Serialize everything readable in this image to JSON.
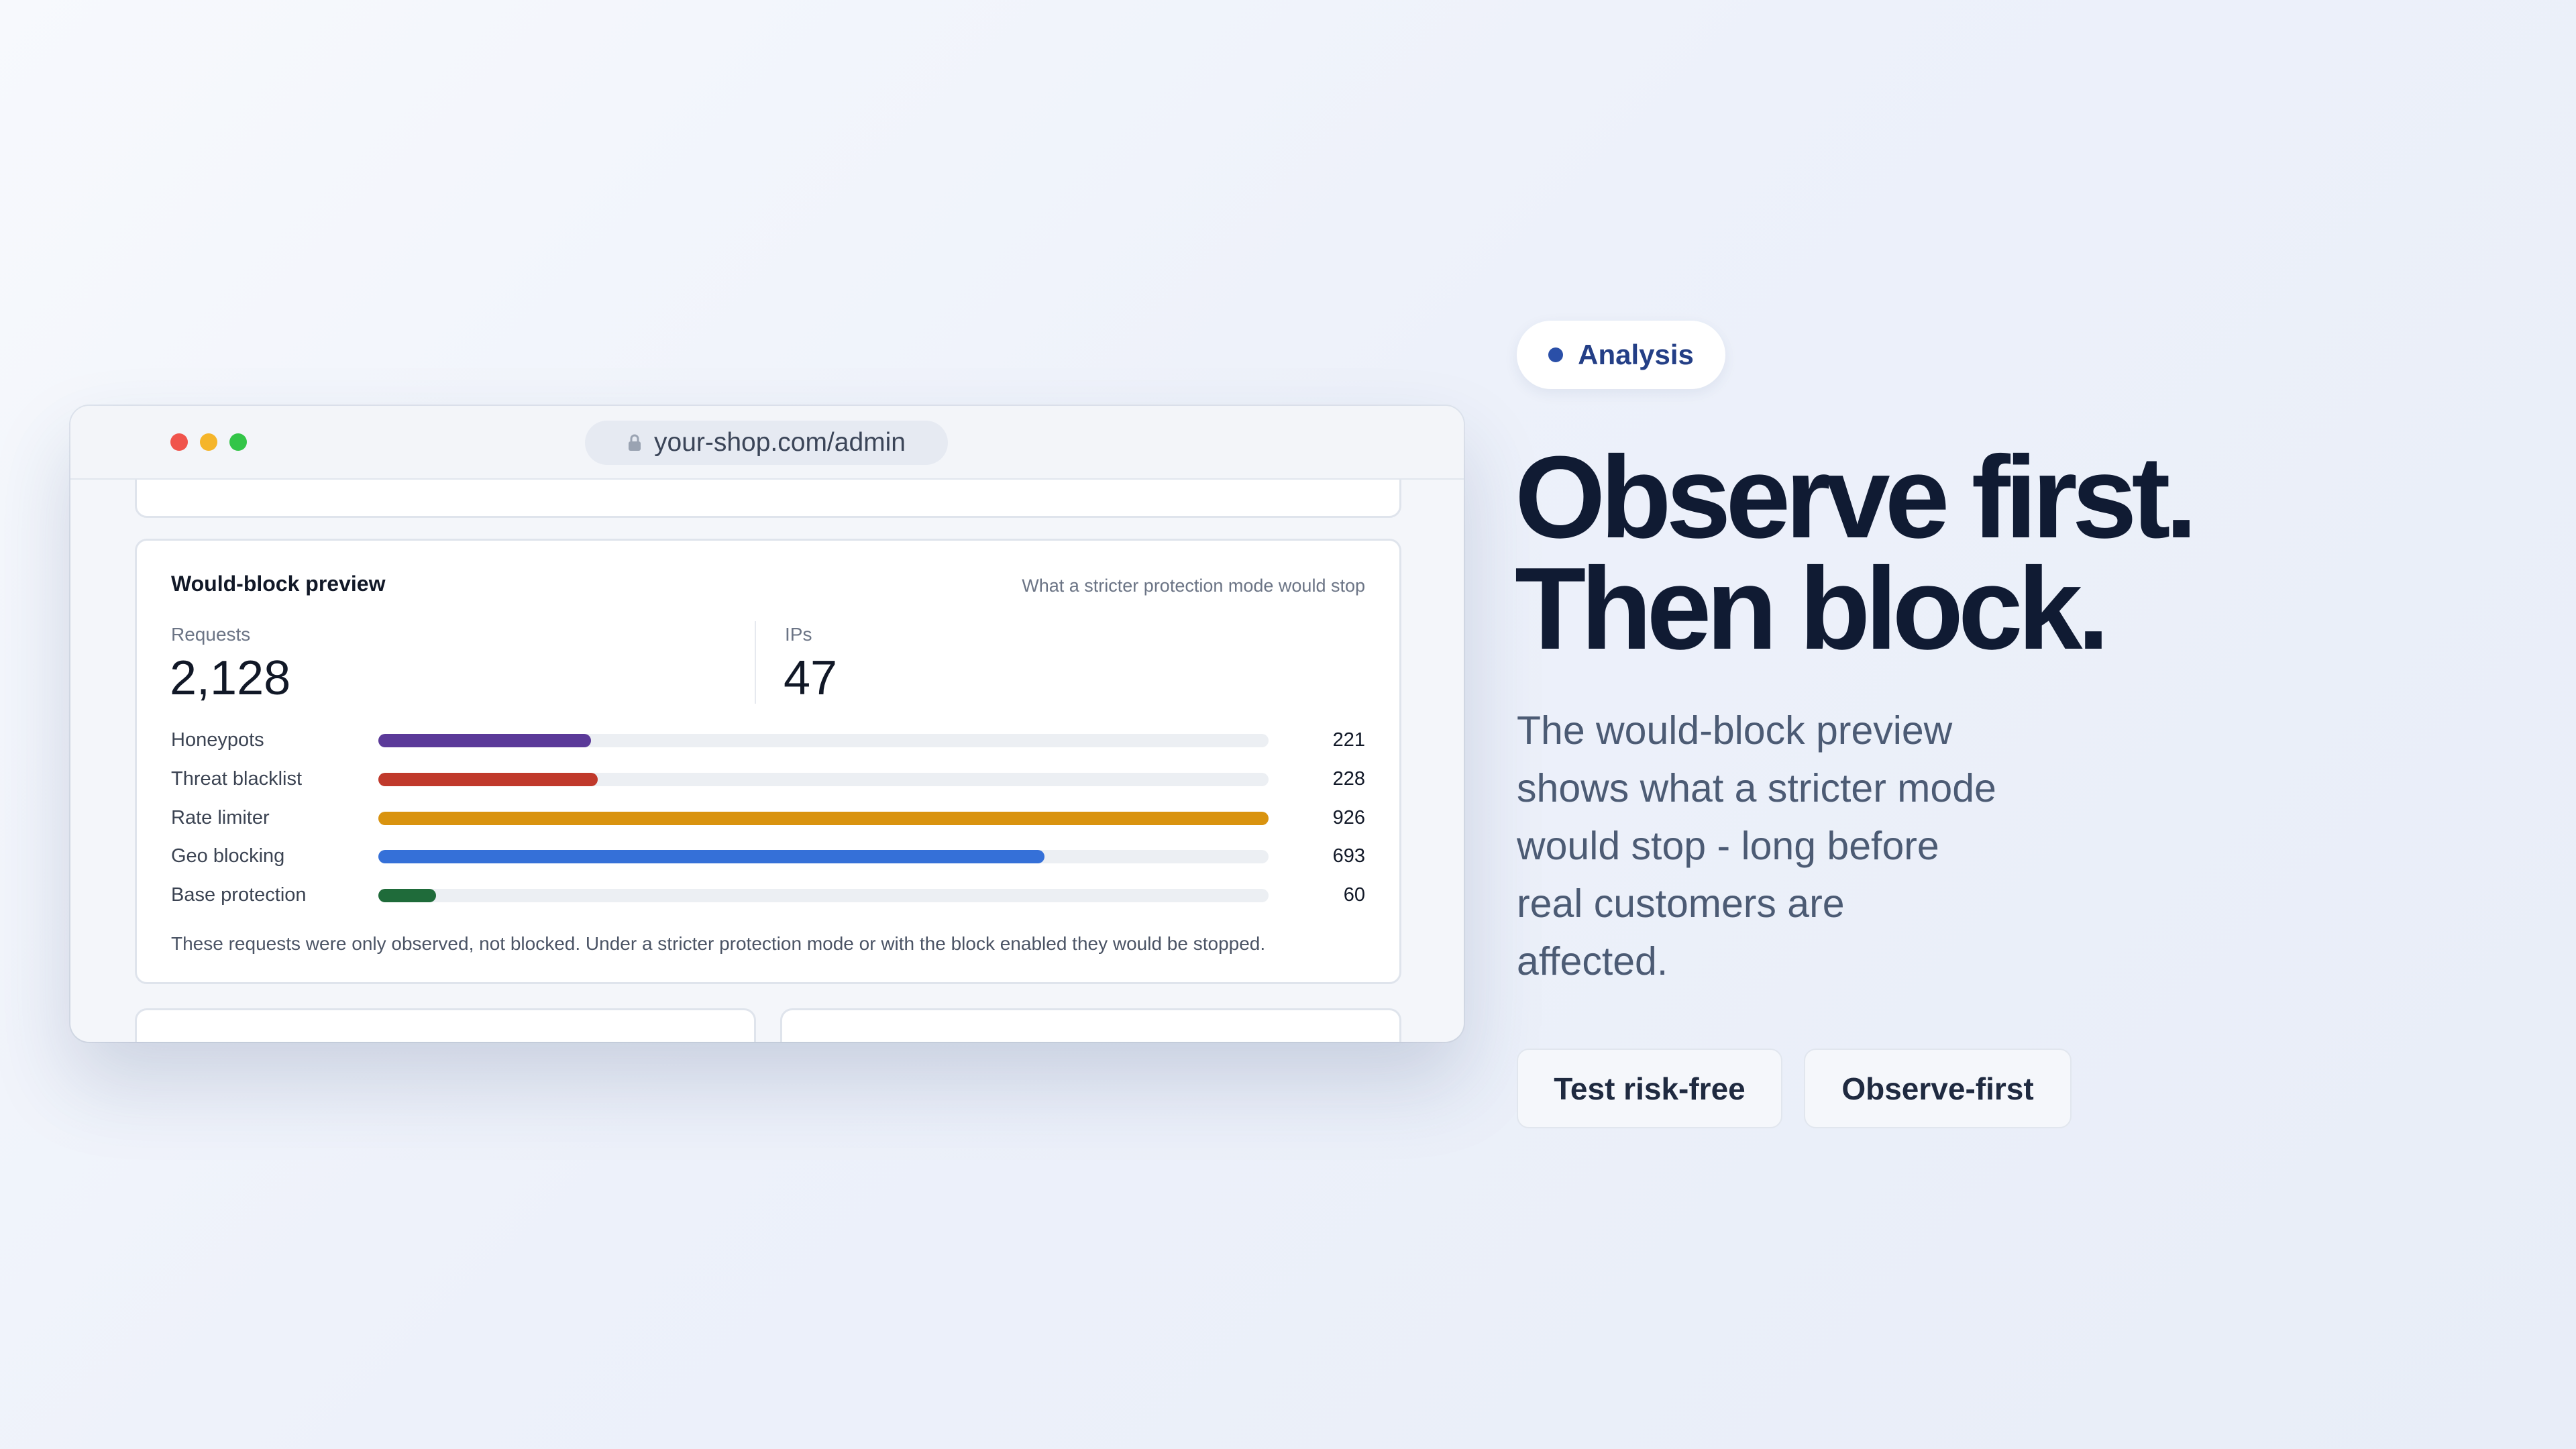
{
  "window": {
    "url": "your-shop.com/admin"
  },
  "preview": {
    "title": "Would-block preview",
    "subtitle": "What a stricter protection mode would stop",
    "stats": [
      {
        "label": "Requests",
        "value": "2,128"
      },
      {
        "label": "IPs",
        "value": "47"
      }
    ],
    "note": "These requests were only observed, not blocked. Under a stricter protection mode or with the block enabled they would be stopped."
  },
  "chart_data": {
    "type": "bar",
    "orientation": "horizontal",
    "categories": [
      "Honeypots",
      "Threat blacklist",
      "Rate limiter",
      "Geo blocking",
      "Base protection"
    ],
    "values": [
      221,
      228,
      926,
      693,
      60
    ],
    "colors": [
      "#5b3a99",
      "#c0392b",
      "#d9930f",
      "#3570d8",
      "#1f6b3a"
    ],
    "xlim": [
      0,
      926
    ]
  },
  "hero": {
    "badge": "Analysis",
    "headline": [
      "Observe first.",
      "Then block."
    ],
    "body": "The would-block preview shows what a stricter mode would stop - long before real customers are affected.",
    "buttons": [
      "Test risk-free",
      "Observe-first"
    ]
  }
}
